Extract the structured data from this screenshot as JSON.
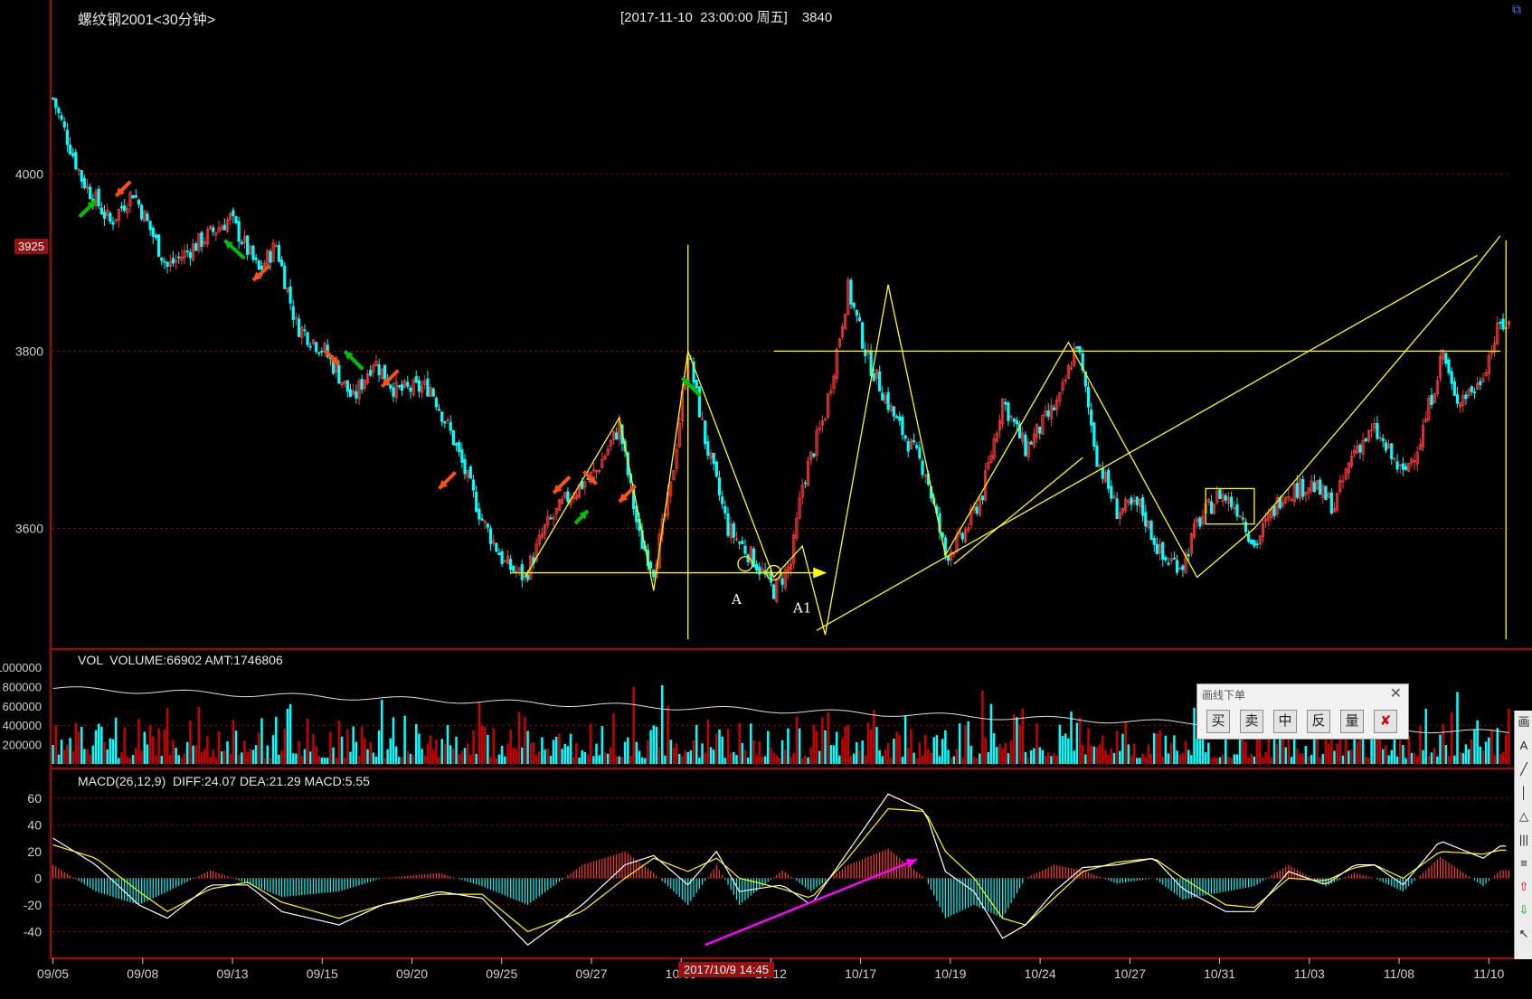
{
  "title": "螺纹钢2001<30分钟>",
  "status": {
    "datetime": "[2017-11-10  23:00:00 周五]",
    "price": "3840"
  },
  "current_price_tag": "3925",
  "cursor_date_tag": "2017/10/9 14:45",
  "vol_header": "VOL  VOLUME:66902 AMT:1746806",
  "macd_header": "MACD(26,12,9)  DIFF:24.07 DEA:21.29 MACD:5.55",
  "drawing_panel": {
    "title": "画线下单",
    "close": "✕",
    "buttons": [
      "买",
      "卖",
      "中",
      "反",
      "量"
    ]
  },
  "right_toolbar": [
    "画",
    "A",
    "╱",
    "│",
    "△",
    "|||",
    "≡",
    "⇧",
    "⇩",
    "↖"
  ],
  "icons": {
    "corner": "restore-icon",
    "cancel": "cancel-order-icon"
  },
  "colors": {
    "up": "#ff3a3a",
    "down": "#00ffff",
    "vol_up": "#c80000",
    "vol_down": "#00ffff",
    "drawing": "#ffff00",
    "diff": "#ffffff",
    "dea": "#ffff00",
    "panel_border": "#b00000",
    "grid": "#8b0000",
    "green_arrow": "#00c000",
    "orange_arrow": "#ff5010",
    "magenta": "#ff00ff"
  },
  "annotations": {
    "a": "A",
    "a1": "A1"
  },
  "chart_data": [
    {
      "type": "candlestick",
      "title": "螺纹钢2001<30分钟>",
      "ylim": [
        3470,
        4140
      ],
      "y_ticks": [
        4000,
        3800,
        3600
      ],
      "x_ticks": [
        "09/05",
        "09/08",
        "09/13",
        "09/15",
        "09/20",
        "09/25",
        "09/27",
        "10/09",
        "10/12",
        "10/17",
        "10/19",
        "10/24",
        "10/27",
        "10/31",
        "11/03",
        "11/08",
        "11/10"
      ],
      "close_path": [
        [
          0,
          4085
        ],
        [
          5,
          4040
        ],
        [
          10,
          3995
        ],
        [
          20,
          3945
        ],
        [
          28,
          3980
        ],
        [
          40,
          3895
        ],
        [
          52,
          3925
        ],
        [
          62,
          3950
        ],
        [
          72,
          3890
        ],
        [
          78,
          3920
        ],
        [
          85,
          3830
        ],
        [
          95,
          3800
        ],
        [
          105,
          3745
        ],
        [
          112,
          3790
        ],
        [
          120,
          3755
        ],
        [
          132,
          3760
        ],
        [
          140,
          3700
        ],
        [
          150,
          3610
        ],
        [
          158,
          3560
        ],
        [
          165,
          3545
        ],
        [
          172,
          3600
        ],
        [
          180,
          3635
        ],
        [
          190,
          3665
        ],
        [
          198,
          3715
        ],
        [
          205,
          3590
        ],
        [
          210,
          3555
        ],
        [
          216,
          3645
        ],
        [
          222,
          3800
        ],
        [
          228,
          3700
        ],
        [
          236,
          3600
        ],
        [
          245,
          3565
        ],
        [
          252,
          3530
        ],
        [
          258,
          3560
        ],
        [
          262,
          3650
        ],
        [
          270,
          3730
        ],
        [
          278,
          3870
        ],
        [
          285,
          3790
        ],
        [
          295,
          3720
        ],
        [
          305,
          3665
        ],
        [
          312,
          3570
        ],
        [
          318,
          3590
        ],
        [
          325,
          3640
        ],
        [
          332,
          3745
        ],
        [
          340,
          3690
        ],
        [
          352,
          3745
        ],
        [
          358,
          3810
        ],
        [
          365,
          3680
        ],
        [
          372,
          3620
        ],
        [
          380,
          3625
        ],
        [
          388,
          3565
        ],
        [
          395,
          3560
        ],
        [
          400,
          3605
        ],
        [
          408,
          3640
        ],
        [
          415,
          3620
        ],
        [
          420,
          3580
        ],
        [
          430,
          3640
        ],
        [
          440,
          3650
        ],
        [
          448,
          3625
        ],
        [
          455,
          3690
        ],
        [
          462,
          3710
        ],
        [
          468,
          3680
        ],
        [
          472,
          3660
        ],
        [
          478,
          3700
        ],
        [
          486,
          3800
        ],
        [
          490,
          3745
        ],
        [
          498,
          3760
        ],
        [
          506,
          3830
        ]
      ]
    },
    {
      "type": "bar",
      "title": "VOL",
      "ylim": [
        0,
        1000000
      ],
      "y_ticks": [
        1000000,
        800000,
        600000,
        400000,
        200000
      ],
      "series": [
        {
          "name": "VOLUME",
          "last": 66902
        },
        {
          "name": "AMT",
          "last": 1746806
        }
      ]
    },
    {
      "type": "line",
      "title": "MACD(26,12,9)",
      "ylim": [
        -60,
        70
      ],
      "y_ticks": [
        60,
        40,
        20,
        0,
        -20,
        -40
      ],
      "series": [
        {
          "name": "DIFF",
          "last": 24.07,
          "points": [
            [
              0,
              30
            ],
            [
              15,
              10
            ],
            [
              30,
              -20
            ],
            [
              40,
              -30
            ],
            [
              55,
              -5
            ],
            [
              68,
              -5
            ],
            [
              80,
              -25
            ],
            [
              100,
              -35
            ],
            [
              115,
              -20
            ],
            [
              135,
              -10
            ],
            [
              150,
              -15
            ],
            [
              166,
              -50
            ],
            [
              185,
              -20
            ],
            [
              200,
              10
            ],
            [
              210,
              17
            ],
            [
              222,
              -5
            ],
            [
              232,
              20
            ],
            [
              240,
              -10
            ],
            [
              255,
              -5
            ],
            [
              265,
              -20
            ],
            [
              278,
              20
            ],
            [
              292,
              63
            ],
            [
              305,
              50
            ],
            [
              312,
              5
            ],
            [
              322,
              -10
            ],
            [
              332,
              -45
            ],
            [
              340,
              -35
            ],
            [
              350,
              -10
            ],
            [
              360,
              8
            ],
            [
              372,
              10
            ],
            [
              385,
              15
            ],
            [
              395,
              -8
            ],
            [
              410,
              -25
            ],
            [
              420,
              -25
            ],
            [
              432,
              5
            ],
            [
              445,
              -5
            ],
            [
              455,
              10
            ],
            [
              462,
              10
            ],
            [
              472,
              -5
            ],
            [
              485,
              28
            ],
            [
              500,
              15
            ],
            [
              506,
              24
            ]
          ]
        },
        {
          "name": "DEA",
          "last": 21.29,
          "points": [
            [
              0,
              25
            ],
            [
              15,
              15
            ],
            [
              30,
              -10
            ],
            [
              40,
              -25
            ],
            [
              55,
              -8
            ],
            [
              68,
              -3
            ],
            [
              80,
              -18
            ],
            [
              100,
              -30
            ],
            [
              115,
              -20
            ],
            [
              135,
              -12
            ],
            [
              150,
              -12
            ],
            [
              166,
              -40
            ],
            [
              185,
              -25
            ],
            [
              200,
              0
            ],
            [
              210,
              15
            ],
            [
              222,
              5
            ],
            [
              232,
              15
            ],
            [
              240,
              0
            ],
            [
              255,
              -8
            ],
            [
              265,
              -15
            ],
            [
              278,
              15
            ],
            [
              292,
              52
            ],
            [
              305,
              50
            ],
            [
              312,
              20
            ],
            [
              322,
              0
            ],
            [
              332,
              -30
            ],
            [
              340,
              -35
            ],
            [
              350,
              -15
            ],
            [
              360,
              5
            ],
            [
              372,
              12
            ],
            [
              385,
              15
            ],
            [
              395,
              0
            ],
            [
              410,
              -20
            ],
            [
              420,
              -22
            ],
            [
              432,
              0
            ],
            [
              445,
              -2
            ],
            [
              455,
              8
            ],
            [
              462,
              10
            ],
            [
              472,
              0
            ],
            [
              485,
              20
            ],
            [
              500,
              18
            ],
            [
              506,
              21
            ]
          ]
        }
      ]
    }
  ]
}
